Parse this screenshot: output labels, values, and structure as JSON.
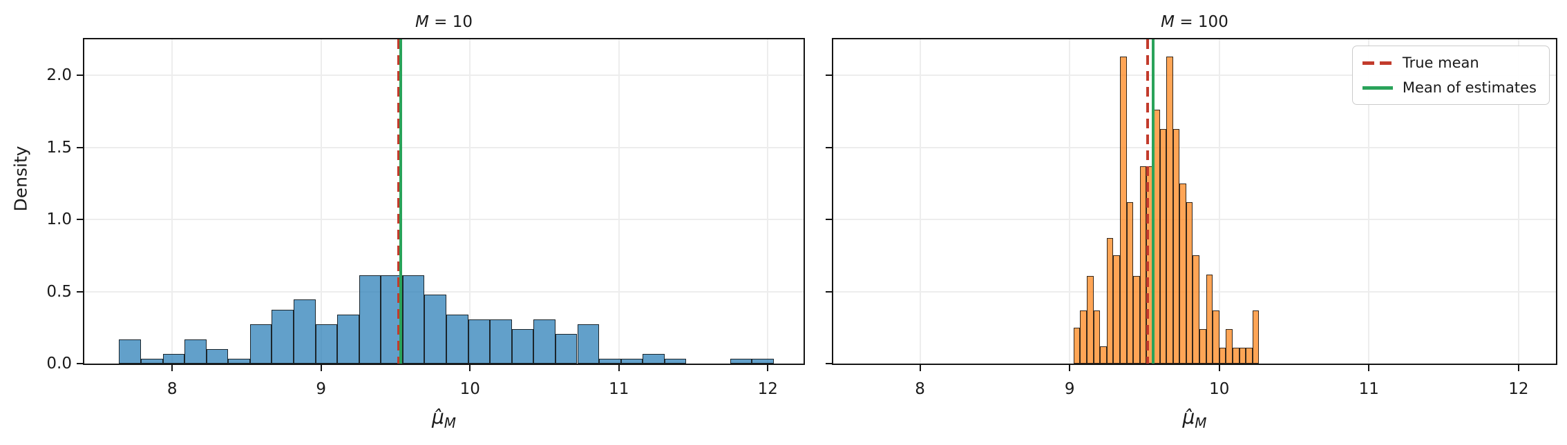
{
  "figure": {
    "background": "#ffffff",
    "text_color": "#1a1a1a"
  },
  "colors": {
    "true_mean_line": "#c23b2c",
    "mean_of_estimates_line": "#2aa35a",
    "left_bar_fill": "rgba(31,119,180,0.7)",
    "right_bar_fill": "rgba(255,127,14,0.7)",
    "bar_edge": "rgba(15,15,15,0.85)",
    "grid": "#ededed"
  },
  "legend": {
    "items": [
      {
        "label": "True mean",
        "color": "#c23b2c",
        "style": "dashed"
      },
      {
        "label": "Mean of estimates",
        "color": "#2aa35a",
        "style": "solid"
      }
    ]
  },
  "chart_data": [
    {
      "type": "bar",
      "subtype": "histogram",
      "title": "M = 10",
      "title_var": "M",
      "title_rest": " = 10",
      "xlabel": "μ̂M",
      "xlabel_mu": "μ̂",
      "xlabel_sub": "M",
      "ylabel": "Density",
      "xlim": [
        7.41,
        12.24
      ],
      "ylim": [
        0,
        2.25
      ],
      "xticks": [
        "8",
        "9",
        "10",
        "11",
        "12"
      ],
      "xtick_values": [
        8,
        9,
        10,
        11,
        12
      ],
      "yticks": [
        "0.0",
        "0.5",
        "1.0",
        "1.5",
        "2.0"
      ],
      "ytick_values": [
        0,
        0.5,
        1.0,
        1.5,
        2.0
      ],
      "grid": true,
      "legend_position": null,
      "bar_color": "rgba(31,119,180,0.7)",
      "bin_start": 7.644,
      "bin_width": 0.1465,
      "densities": [
        0.17,
        0.034,
        0.068,
        0.17,
        0.102,
        0.034,
        0.273,
        0.375,
        0.443,
        0.273,
        0.341,
        0.614,
        0.614,
        0.614,
        0.477,
        0.341,
        0.307,
        0.307,
        0.239,
        0.307,
        0.205,
        0.273,
        0.034,
        0.034,
        0.068,
        0.034,
        0,
        0,
        0.034,
        0.034
      ],
      "true_mean": 9.52,
      "mean_of_estimates": 9.535,
      "show_ytick_labels": true,
      "show_legend": false
    },
    {
      "type": "bar",
      "subtype": "histogram",
      "title": "M = 100",
      "title_var": "M",
      "title_rest": " = 100",
      "xlabel": "μ̂M",
      "xlabel_mu": "μ̂",
      "xlabel_sub": "M",
      "ylabel": "",
      "xlim": [
        7.42,
        12.25
      ],
      "ylim": [
        0,
        2.25
      ],
      "xticks": [
        "8",
        "9",
        "10",
        "11",
        "12"
      ],
      "xtick_values": [
        8,
        9,
        10,
        11,
        12
      ],
      "yticks": [
        "0.0",
        "0.5",
        "1.0",
        "1.5",
        "2.0"
      ],
      "ytick_values": [
        0,
        0.5,
        1.0,
        1.5,
        2.0
      ],
      "grid": true,
      "legend_position": "upper right",
      "bar_color": "rgba(255,127,14,0.7)",
      "bin_start": 9.026,
      "bin_width": 0.0443,
      "densities": [
        0.25,
        0.37,
        0.61,
        0.37,
        0.12,
        0.87,
        0.75,
        2.13,
        1.12,
        0.61,
        1.37,
        1.37,
        1.76,
        1.63,
        2.13,
        1.63,
        1.25,
        1.12,
        0.75,
        0.24,
        0.62,
        0.37,
        0.11,
        0.24,
        0.11,
        0.11,
        0.11,
        0.37
      ],
      "true_mean": 9.52,
      "mean_of_estimates": 9.56,
      "show_ytick_labels": false,
      "show_legend": true
    }
  ]
}
